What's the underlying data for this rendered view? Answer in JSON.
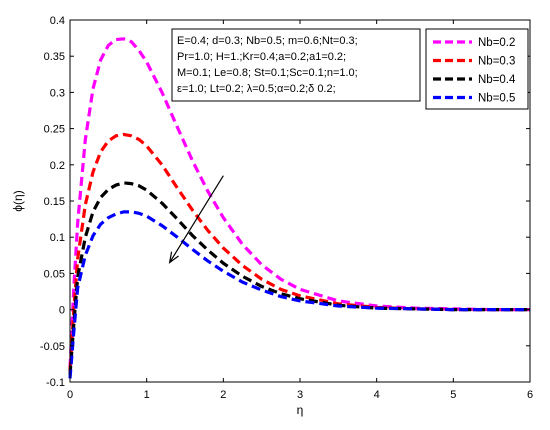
{
  "chart_data": {
    "type": "line",
    "xlabel": "η",
    "ylabel": "ϕ(η)",
    "xlim": [
      0,
      6
    ],
    "ylim": [
      -0.1,
      0.4
    ],
    "x_ticks": [
      "0",
      "1",
      "2",
      "3",
      "4",
      "5",
      "6"
    ],
    "y_ticks": [
      "-0.1",
      "-0.05",
      "0",
      "0.05",
      "0.1",
      "0.15",
      "0.2",
      "0.25",
      "0.3",
      "0.35",
      "0.4"
    ],
    "grid": false,
    "legend_position": "top-right",
    "annotation_lines": [
      "E=0.4; d=0.3; Nb=0.5; m=0.6;Nt=0.3;",
      "Pr=1.0; H=1.;Kr=0.4;a=0.2;a1=0.2;",
      "M=0.1; Le=0.8; St=0.1;Sc=0.1;n=1.0;",
      "ε=1.0; Lt=0.2; λ=0.5;α=0.2;δ 0.2;"
    ],
    "arrow": {
      "from": [
        2.0,
        0.185
      ],
      "to": [
        1.3,
        0.065
      ],
      "meaning": "increasing Nb"
    },
    "series": [
      {
        "name": "Nb=0.2",
        "color": "#ff00ff",
        "x": [
          0,
          0.05,
          0.1,
          0.2,
          0.3,
          0.4,
          0.5,
          0.6,
          0.7,
          0.8,
          0.9,
          1.0,
          1.2,
          1.4,
          1.6,
          1.8,
          2.0,
          2.25,
          2.5,
          2.75,
          3.0,
          3.5,
          4.0,
          4.5,
          5.0,
          5.5,
          6.0
        ],
        "y": [
          -0.08,
          0.03,
          0.12,
          0.235,
          0.305,
          0.345,
          0.365,
          0.373,
          0.374,
          0.37,
          0.358,
          0.342,
          0.3,
          0.252,
          0.205,
          0.163,
          0.127,
          0.09,
          0.062,
          0.042,
          0.028,
          0.012,
          0.005,
          0.002,
          0.001,
          0.0,
          0.0
        ]
      },
      {
        "name": "Nb=0.3",
        "color": "#ff0000",
        "x": [
          0,
          0.05,
          0.1,
          0.2,
          0.3,
          0.4,
          0.5,
          0.6,
          0.7,
          0.8,
          0.9,
          1.0,
          1.2,
          1.4,
          1.6,
          1.8,
          2.0,
          2.25,
          2.5,
          2.75,
          3.0,
          3.5,
          4.0,
          4.5,
          5.0,
          5.5,
          6.0
        ],
        "y": [
          -0.085,
          0.0,
          0.07,
          0.145,
          0.19,
          0.218,
          0.233,
          0.24,
          0.242,
          0.24,
          0.235,
          0.226,
          0.2,
          0.168,
          0.137,
          0.109,
          0.085,
          0.061,
          0.042,
          0.028,
          0.019,
          0.008,
          0.003,
          0.001,
          0.0,
          0.0,
          0.0
        ]
      },
      {
        "name": "Nb=0.4",
        "color": "#000000",
        "x": [
          0,
          0.05,
          0.1,
          0.2,
          0.3,
          0.4,
          0.5,
          0.6,
          0.7,
          0.8,
          0.9,
          1.0,
          1.2,
          1.4,
          1.6,
          1.8,
          2.0,
          2.25,
          2.5,
          2.75,
          3.0,
          3.5,
          4.0,
          4.5,
          5.0,
          5.5,
          6.0
        ],
        "y": [
          -0.09,
          -0.02,
          0.045,
          0.1,
          0.135,
          0.155,
          0.166,
          0.172,
          0.175,
          0.174,
          0.171,
          0.165,
          0.147,
          0.125,
          0.102,
          0.082,
          0.064,
          0.046,
          0.032,
          0.022,
          0.015,
          0.006,
          0.002,
          0.001,
          0.0,
          0.0,
          0.0
        ]
      },
      {
        "name": "Nb=0.5",
        "color": "#0000ff",
        "x": [
          0,
          0.05,
          0.1,
          0.2,
          0.3,
          0.4,
          0.5,
          0.6,
          0.7,
          0.8,
          0.9,
          1.0,
          1.2,
          1.4,
          1.6,
          1.8,
          2.0,
          2.25,
          2.5,
          2.75,
          3.0,
          3.5,
          4.0,
          4.5,
          5.0,
          5.5,
          6.0
        ],
        "y": [
          -0.095,
          -0.03,
          0.03,
          0.075,
          0.102,
          0.118,
          0.127,
          0.132,
          0.135,
          0.135,
          0.133,
          0.129,
          0.116,
          0.1,
          0.083,
          0.067,
          0.053,
          0.038,
          0.027,
          0.018,
          0.012,
          0.005,
          0.002,
          0.001,
          0.0,
          0.0,
          0.0
        ]
      }
    ]
  }
}
